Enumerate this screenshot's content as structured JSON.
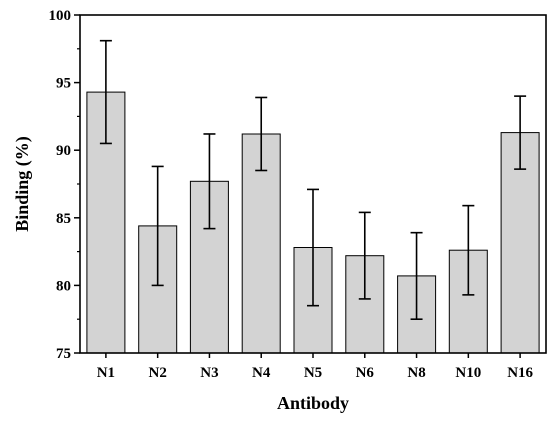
{
  "chart_data": {
    "type": "bar",
    "xlabel": "Antibody",
    "ylabel": "Binding (%)",
    "categories": [
      "N1",
      "N2",
      "N3",
      "N4",
      "N5",
      "N6",
      "N8",
      "N10",
      "N16"
    ],
    "values": [
      94.3,
      84.4,
      87.7,
      91.2,
      82.8,
      82.2,
      80.7,
      82.6,
      91.3
    ],
    "errors": [
      3.8,
      4.4,
      3.5,
      2.7,
      4.3,
      3.2,
      3.2,
      3.3,
      2.7
    ],
    "ylim": [
      75,
      100
    ],
    "yticks": [
      75,
      80,
      85,
      90,
      95,
      100
    ],
    "grid": false,
    "bar_color": "#d3d3d3",
    "edge_color": "#000000"
  }
}
